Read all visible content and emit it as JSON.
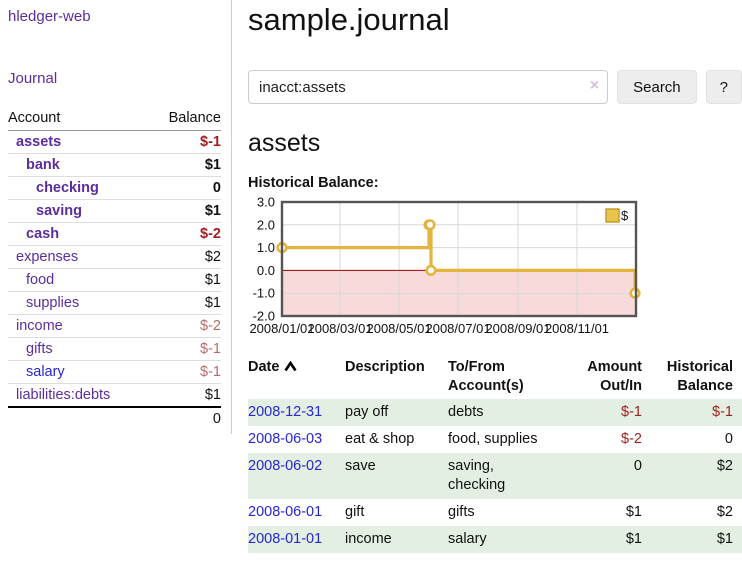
{
  "sidebar": {
    "brand": "hledger-web",
    "nav": {
      "journal": "Journal"
    },
    "accounts_table": {
      "headers": {
        "account": "Account",
        "balance": "Balance"
      },
      "rows": [
        {
          "name": "assets",
          "level": 1,
          "bold": true,
          "balance": "$-1"
        },
        {
          "name": "bank",
          "level": 2,
          "bold": true,
          "balance": "$1"
        },
        {
          "name": "checking",
          "level": 3,
          "bold": true,
          "balance": "0"
        },
        {
          "name": "saving",
          "level": 3,
          "bold": true,
          "balance": "$1"
        },
        {
          "name": "cash",
          "level": 2,
          "bold": true,
          "balance": "$-2"
        },
        {
          "name": "expenses",
          "level": 1,
          "bold": false,
          "balance": "$2"
        },
        {
          "name": "food",
          "level": 2,
          "bold": false,
          "balance": "$1"
        },
        {
          "name": "supplies",
          "level": 2,
          "bold": false,
          "balance": "$1"
        },
        {
          "name": "income",
          "level": 1,
          "bold": false,
          "balance": "$-2"
        },
        {
          "name": "gifts",
          "level": 2,
          "bold": false,
          "balance": "$-1"
        },
        {
          "name": "salary",
          "level": 2,
          "bold": false,
          "balance": "$-1",
          "blue": true
        },
        {
          "name": "liabilities:debts",
          "level": 1,
          "bold": false,
          "balance": "$1"
        }
      ],
      "total": "0"
    }
  },
  "main": {
    "title": "sample.journal",
    "search": {
      "value": "inacct:assets",
      "clear_icon": "×",
      "button": "Search",
      "help_button": "?"
    },
    "account_heading": "assets",
    "chart_label": "Historical Balance:",
    "register": {
      "headers": [
        {
          "label": "Date",
          "sorted": "asc",
          "align": "left"
        },
        {
          "label": "Description",
          "align": "left"
        },
        {
          "label": "To/From Account(s)",
          "align": "left"
        },
        {
          "label": "Amount Out/In",
          "align": "right"
        },
        {
          "label": "Historical Balance",
          "align": "right"
        }
      ],
      "rows": [
        {
          "date": "2008-12-31",
          "description": "pay off",
          "accounts": "debts",
          "amount": "$-1",
          "balance": "$-1"
        },
        {
          "date": "2008-06-03",
          "description": "eat & shop",
          "accounts": "food, supplies",
          "amount": "$-2",
          "balance": "0"
        },
        {
          "date": "2008-06-02",
          "description": "save",
          "accounts": "saving, checking",
          "amount": "0",
          "balance": "$2"
        },
        {
          "date": "2008-06-01",
          "description": "gift",
          "accounts": "gifts",
          "amount": "$1",
          "balance": "$2"
        },
        {
          "date": "2008-01-01",
          "description": "income",
          "accounts": "salary",
          "amount": "$1",
          "balance": "$1"
        }
      ]
    }
  },
  "chart_data": {
    "type": "line",
    "title": "Historical Balance:",
    "step": true,
    "series": [
      {
        "name": "$",
        "points": [
          [
            "2008-01-01",
            1
          ],
          [
            "2008-06-01",
            2
          ],
          [
            "2008-06-02",
            2
          ],
          [
            "2008-06-03",
            0
          ],
          [
            "2008-12-31",
            -1
          ]
        ]
      }
    ],
    "xrange": [
      "2008-01-01",
      "2009-01-01"
    ],
    "xticks": [
      {
        "t": "2008-01-01",
        "label": "2008/01/01"
      },
      {
        "t": "2008-03-01",
        "label": "2008/03/01"
      },
      {
        "t": "2008-05-01",
        "label": "2008/05/01"
      },
      {
        "t": "2008-07-01",
        "label": "2008/07/01"
      },
      {
        "t": "2008-09-01",
        "label": "2008/09/01"
      },
      {
        "t": "2008-11-01",
        "label": "2008/11/01"
      }
    ],
    "ylim": [
      -2,
      3
    ],
    "yticks": [
      3,
      2,
      1,
      0,
      -1,
      -2
    ],
    "legend": {
      "position": "top-right",
      "label": "$"
    },
    "colors": {
      "line": "#e3b53e",
      "marker_fill": "#ffffff",
      "negative_fill": "#f9dada",
      "zero_line": "#990000",
      "grid": "#d8d8d8",
      "border": "#555555",
      "legend_fill": "#e8c44d",
      "legend_border": "#bf962a"
    }
  },
  "colors": {
    "link_purple": "#5b2d9e",
    "link_blue": "#2727d0",
    "neg_strong": "#9e1f1f",
    "neg_soft": "#b96b6b",
    "row_green": "#e2efe2"
  }
}
